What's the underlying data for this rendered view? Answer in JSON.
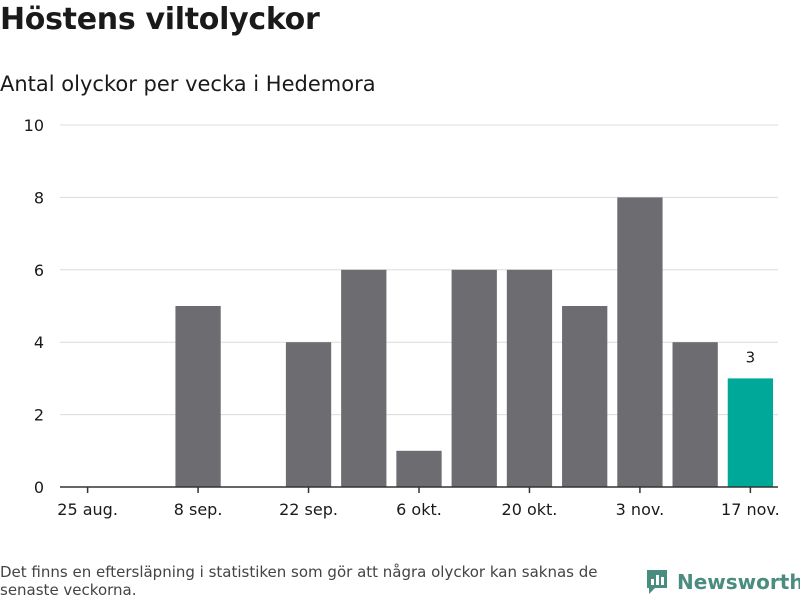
{
  "header": {
    "title": "Höstens viltolyckor",
    "subtitle": "Antal olyckor per vecka i Hedemora"
  },
  "chart_data": {
    "type": "bar",
    "title": "Höstens viltolyckor",
    "subtitle": "Antal olyckor per vecka i Hedemora",
    "xlabel": "",
    "ylabel": "",
    "ylim": [
      0,
      10
    ],
    "yticks": [
      0,
      2,
      4,
      6,
      8,
      10
    ],
    "grid": true,
    "categories": [
      "25 aug.",
      "1 sep.",
      "8 sep.",
      "15 sep.",
      "22 sep.",
      "29 sep.",
      "6 okt.",
      "13 okt.",
      "20 okt.",
      "27 okt.",
      "3 nov.",
      "10 nov.",
      "17 nov."
    ],
    "values": [
      0,
      0,
      5,
      0,
      4,
      6,
      1,
      6,
      6,
      5,
      8,
      4,
      3
    ],
    "xtick_labels": [
      "25 aug.",
      "8 sep.",
      "22 sep.",
      "6 okt.",
      "20 okt.",
      "3 nov.",
      "17 nov."
    ],
    "highlight_index": 12,
    "annotations": [
      {
        "category": "17 nov.",
        "text": "3"
      }
    ],
    "colors": {
      "bar": "#6d6d71",
      "highlight": "#00a89a",
      "grid": "#dcdcdc",
      "axis": "#333333"
    }
  },
  "footer": {
    "note": "Det finns en eftersläpning i statistiken som gör att några olyckor kan saknas de senaste veckorna.",
    "brand": "Newsworthy"
  }
}
